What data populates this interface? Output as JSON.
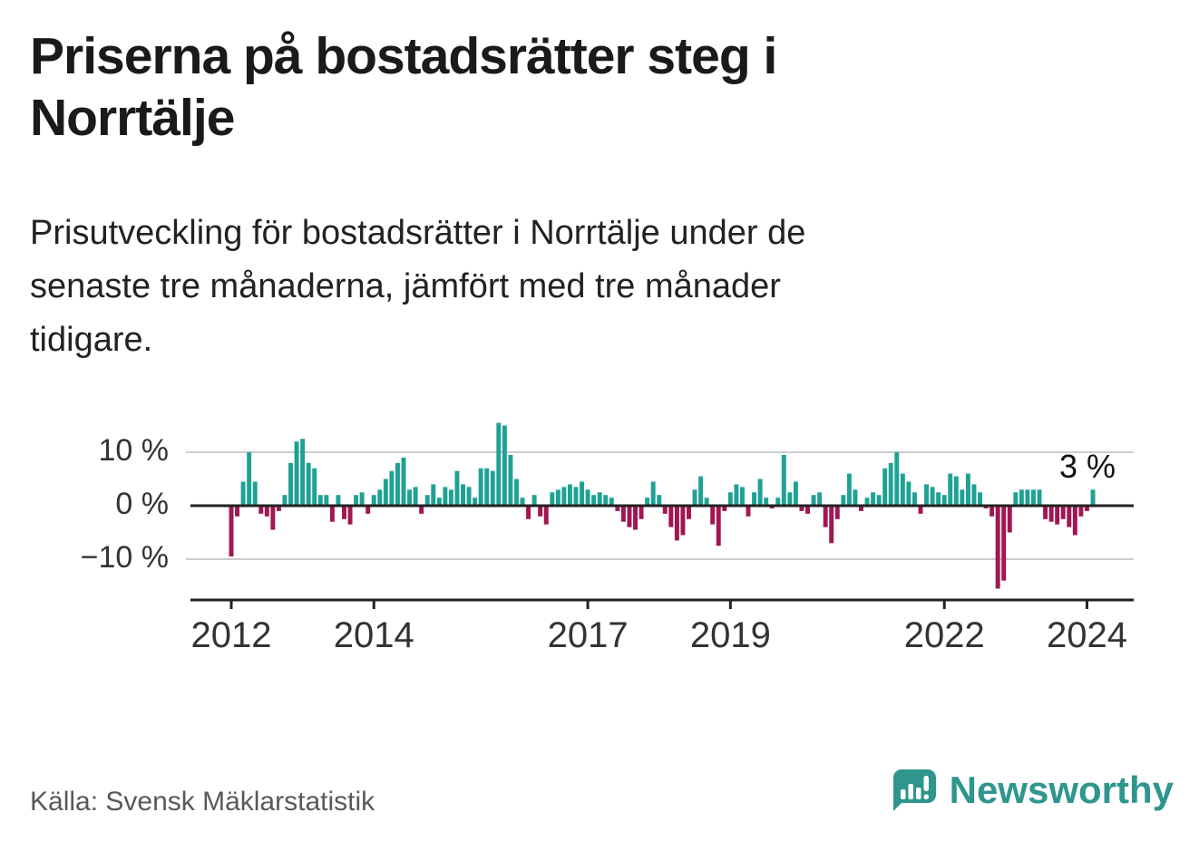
{
  "title": "Priserna på bostadsrätter steg i\nNorrtälje",
  "subtitle": "Prisutveckling för bostadsrätter i Norrtälje under de\nsenaste tre månaderna, jämfört med tre månader\ntidigare.",
  "source": "Källa: Svensk Mäklarstatistik",
  "brand": {
    "name": "Newsworthy",
    "color": "#2E968D"
  },
  "chart_data": {
    "type": "bar",
    "title": "Prisutveckling för bostadsrätter i Norrtälje",
    "frequency": "monthly",
    "start": "2012-01",
    "unit": "%",
    "values": [
      -9.5,
      -2,
      4.5,
      10,
      4.5,
      -1.5,
      -2,
      -4.5,
      -1,
      2,
      8,
      12,
      12.5,
      8,
      7,
      2,
      2,
      -3,
      2,
      -2.5,
      -3.5,
      2,
      2.5,
      -1.5,
      2,
      3,
      5,
      6.5,
      8,
      9,
      3,
      3.5,
      -1.5,
      2,
      4,
      1.5,
      3.5,
      3,
      6.5,
      4,
      3.5,
      1.5,
      7,
      7,
      6.5,
      15.5,
      15,
      9.5,
      5,
      1.5,
      -2.5,
      2,
      -2,
      -3.5,
      2.5,
      3,
      3.5,
      4,
      3.5,
      4.5,
      3,
      2,
      2.5,
      2,
      1.5,
      -1,
      -3,
      -4,
      -4.5,
      -2.5,
      1.5,
      4.5,
      2,
      -1.5,
      -4,
      -6.5,
      -5.5,
      -2.5,
      3,
      5.5,
      1.5,
      -3.5,
      -7.5,
      -1,
      2.5,
      4,
      3.5,
      -2,
      2.5,
      5,
      1.5,
      -0.5,
      1.5,
      9.5,
      2.5,
      4.5,
      -1,
      -1.5,
      2,
      2.5,
      -4,
      -7,
      -2.5,
      2,
      6,
      3,
      -1,
      1.5,
      2.5,
      2,
      7,
      8,
      10,
      6,
      4.5,
      2.5,
      -1.5,
      4,
      3.5,
      2.5,
      2,
      6,
      5.5,
      3,
      6,
      4,
      2.5,
      -0.5,
      -2,
      -15.5,
      -14,
      -5,
      2.5,
      3,
      3,
      3,
      3,
      -2.5,
      -3,
      -3.5,
      -2.5,
      -4,
      -5.5,
      -2,
      -1,
      3
    ],
    "ylim": [
      -17.5,
      17.5
    ],
    "yticks": [
      {
        "value": 10,
        "label": "10 %"
      },
      {
        "value": 0,
        "label": "0 %"
      },
      {
        "value": -10,
        "label": "−10 %"
      }
    ],
    "xticks": [
      {
        "year": 2012,
        "label": "2012"
      },
      {
        "year": 2014,
        "label": "2014"
      },
      {
        "year": 2017,
        "label": "2017"
      },
      {
        "year": 2019,
        "label": "2019"
      },
      {
        "year": 2022,
        "label": "2022"
      },
      {
        "year": 2024,
        "label": "2024"
      }
    ],
    "annotation": {
      "text": "3 %"
    },
    "grid": "horizontal",
    "legend": "none",
    "colors": {
      "positive": "#1FA294",
      "negative": "#A21652"
    }
  }
}
